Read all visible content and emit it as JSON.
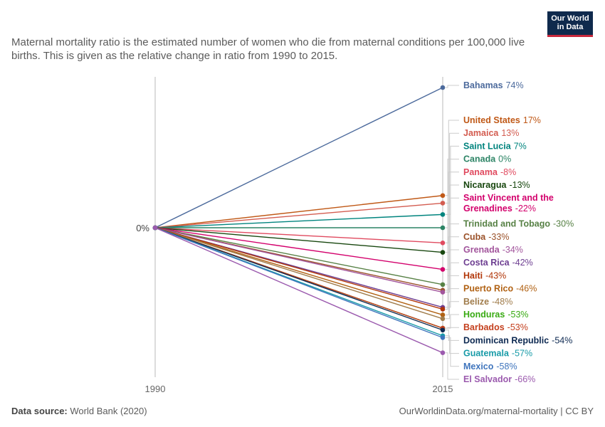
{
  "logo": {
    "line1": "Our World",
    "line2": "in Data"
  },
  "subtitle": "Maternal mortality ratio is the estimated number of women who die from maternal conditions per 100,000 live births. This is given as the relative change in ratio from 1990 to 2015.",
  "footer": {
    "source_label": "Data source:",
    "source_value": "World Bank (2020)",
    "url_license": "OurWorldinData.org/maternal-mortality | CC BY"
  },
  "chart_data": {
    "type": "line",
    "x": [
      "1990",
      "2015"
    ],
    "y_zero_label": "0%",
    "series": [
      {
        "name": "Bahamas",
        "label_lines": [
          "Bahamas"
        ],
        "value_label": "74%",
        "change": 74,
        "color": "#4c6a9c"
      },
      {
        "name": "United States",
        "label_lines": [
          "United States"
        ],
        "value_label": "17%",
        "change": 17,
        "color": "#c05917"
      },
      {
        "name": "Jamaica",
        "label_lines": [
          "Jamaica"
        ],
        "value_label": "13%",
        "change": 13,
        "color": "#d35c50"
      },
      {
        "name": "Saint Lucia",
        "label_lines": [
          "Saint Lucia"
        ],
        "value_label": "7%",
        "change": 7,
        "color": "#00847e"
      },
      {
        "name": "Canada",
        "label_lines": [
          "Canada"
        ],
        "value_label": "0%",
        "change": 0,
        "color": "#2c8465"
      },
      {
        "name": "Panama",
        "label_lines": [
          "Panama"
        ],
        "value_label": "-8%",
        "change": -8,
        "color": "#e04a5f"
      },
      {
        "name": "Nicaragua",
        "label_lines": [
          "Nicaragua"
        ],
        "value_label": "-13%",
        "change": -13,
        "color": "#18470f"
      },
      {
        "name": "Saint Vincent and the Grenadines",
        "label_lines": [
          "Saint Vincent and the",
          "Grenadines"
        ],
        "value_label": "-22%",
        "change": -22,
        "color": "#d3006c"
      },
      {
        "name": "Trinidad and Tobago",
        "label_lines": [
          "Trinidad and Tobago"
        ],
        "value_label": "-30%",
        "change": -30,
        "color": "#578145"
      },
      {
        "name": "Cuba",
        "label_lines": [
          "Cuba"
        ],
        "value_label": "-33%",
        "change": -33,
        "color": "#9a5129"
      },
      {
        "name": "Grenada",
        "label_lines": [
          "Grenada"
        ],
        "value_label": "-34%",
        "change": -34,
        "color": "#a2559c"
      },
      {
        "name": "Costa Rica",
        "label_lines": [
          "Costa Rica"
        ],
        "value_label": "-42%",
        "change": -42,
        "color": "#6d3e91"
      },
      {
        "name": "Haiti",
        "label_lines": [
          "Haiti"
        ],
        "value_label": "-43%",
        "change": -43,
        "color": "#b13507"
      },
      {
        "name": "Puerto Rico",
        "label_lines": [
          "Puerto Rico"
        ],
        "value_label": "-46%",
        "change": -46,
        "color": "#b16214"
      },
      {
        "name": "Belize",
        "label_lines": [
          "Belize"
        ],
        "value_label": "-48%",
        "change": -48,
        "color": "#a07c4b"
      },
      {
        "name": "Honduras",
        "label_lines": [
          "Honduras"
        ],
        "value_label": "-53%",
        "change": -53,
        "color": "#38aa12"
      },
      {
        "name": "Barbados",
        "label_lines": [
          "Barbados"
        ],
        "value_label": "-53%",
        "change": -53,
        "color": "#c4401e"
      },
      {
        "name": "Dominican Republic",
        "label_lines": [
          "Dominican Republic"
        ],
        "value_label": "-54%",
        "change": -54,
        "color": "#0e2a52"
      },
      {
        "name": "Guatemala",
        "label_lines": [
          "Guatemala"
        ],
        "value_label": "-57%",
        "change": -57,
        "color": "#189ba8"
      },
      {
        "name": "Mexico",
        "label_lines": [
          "Mexico"
        ],
        "value_label": "-58%",
        "change": -58,
        "color": "#3f75bd"
      },
      {
        "name": "El Salvador",
        "label_lines": [
          "El Salvador"
        ],
        "value_label": "-66%",
        "change": -66,
        "color": "#9b5aae"
      }
    ]
  }
}
